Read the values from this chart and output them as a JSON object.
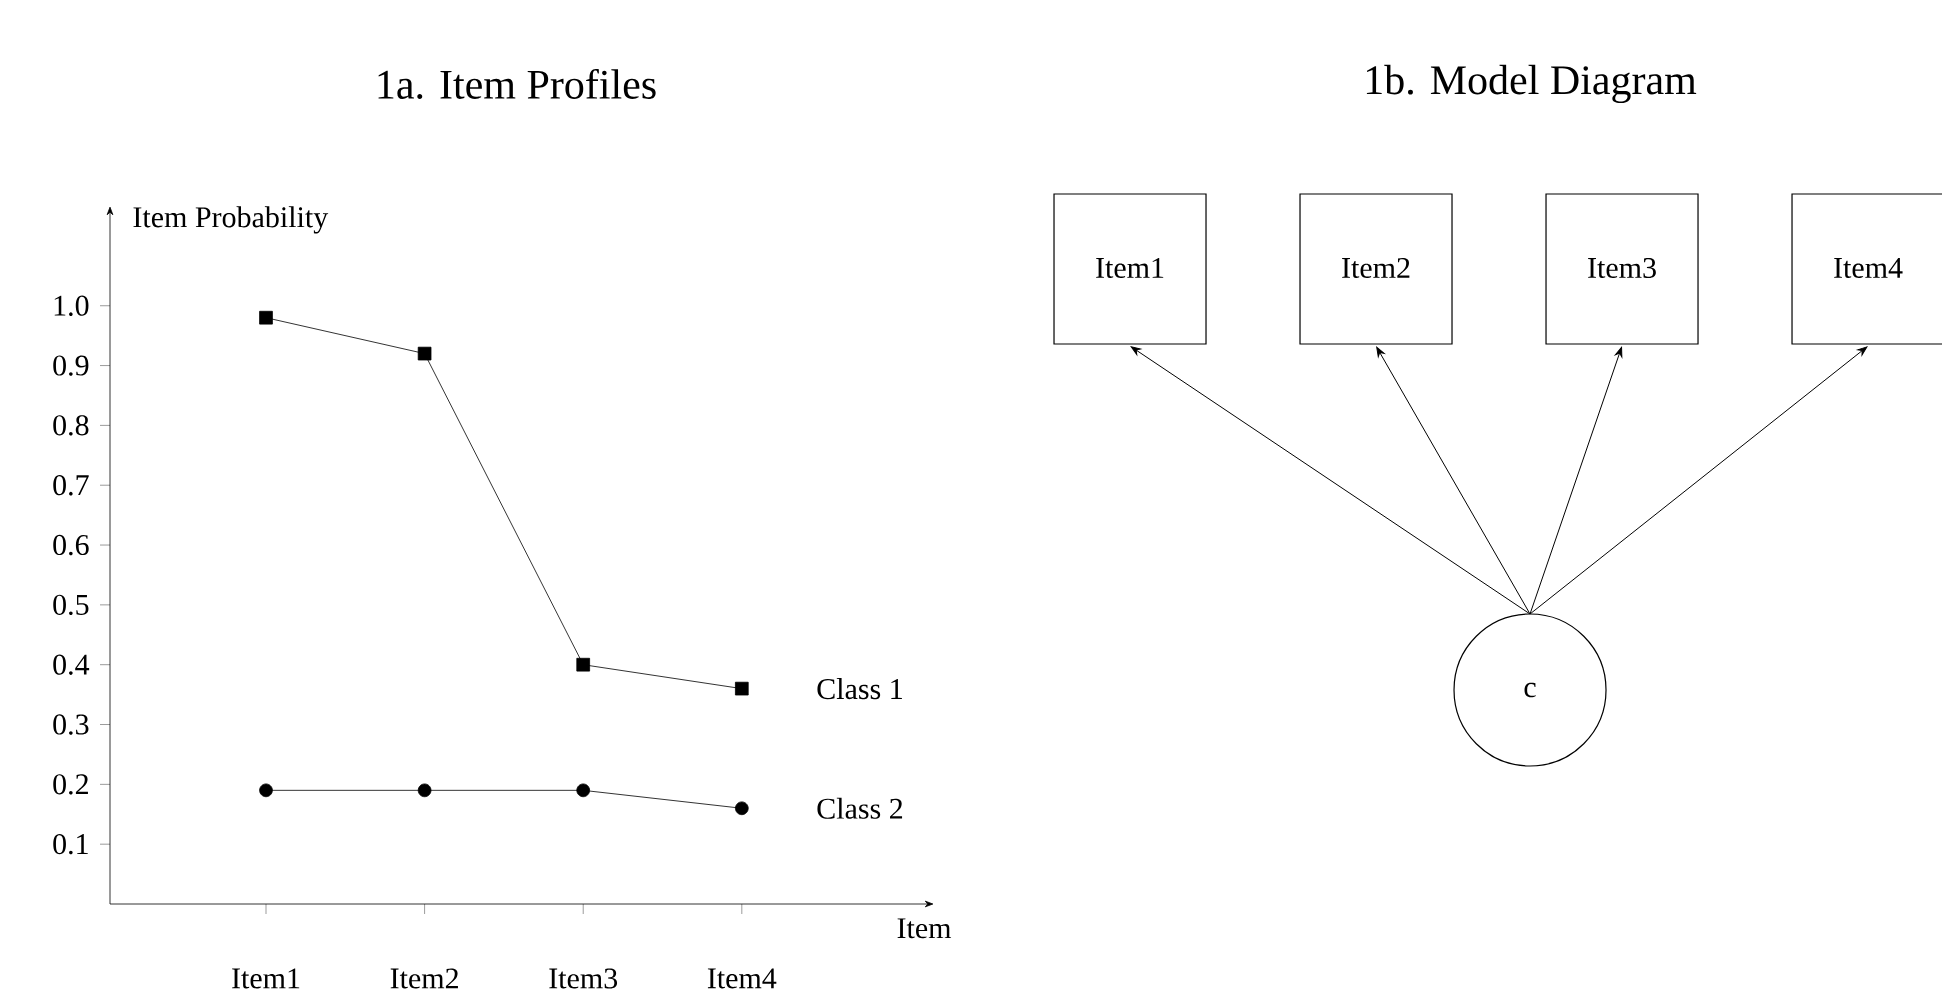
{
  "chart_data": [
    {
      "type": "line",
      "title": "1a. Item Profiles",
      "xlabel": "Item",
      "ylabel": "Item Probability",
      "categories": [
        "Item1",
        "Item2",
        "Item3",
        "Item4"
      ],
      "series": [
        {
          "name": "Class 1",
          "color": "#000000",
          "marker": "square",
          "values": [
            0.98,
            0.92,
            0.4,
            0.36
          ]
        },
        {
          "name": "Class 2",
          "color": "#000000",
          "marker": "circle",
          "values": [
            0.19,
            0.19,
            0.19,
            0.16
          ]
        }
      ],
      "ylim": [
        0,
        1.15
      ],
      "yticks": [
        0.1,
        0.2,
        0.3,
        0.4,
        0.5,
        0.6,
        0.7,
        0.8,
        0.9,
        {
          "value": 1.0,
          "label": "1.0"
        }
      ],
      "grid": false,
      "line_style": "solid"
    },
    {
      "type": "other",
      "title": "1b. Model Diagram",
      "annotations": [
        "Item1",
        "Item2",
        "Item3",
        "Item4",
        "c"
      ]
    }
  ]
}
